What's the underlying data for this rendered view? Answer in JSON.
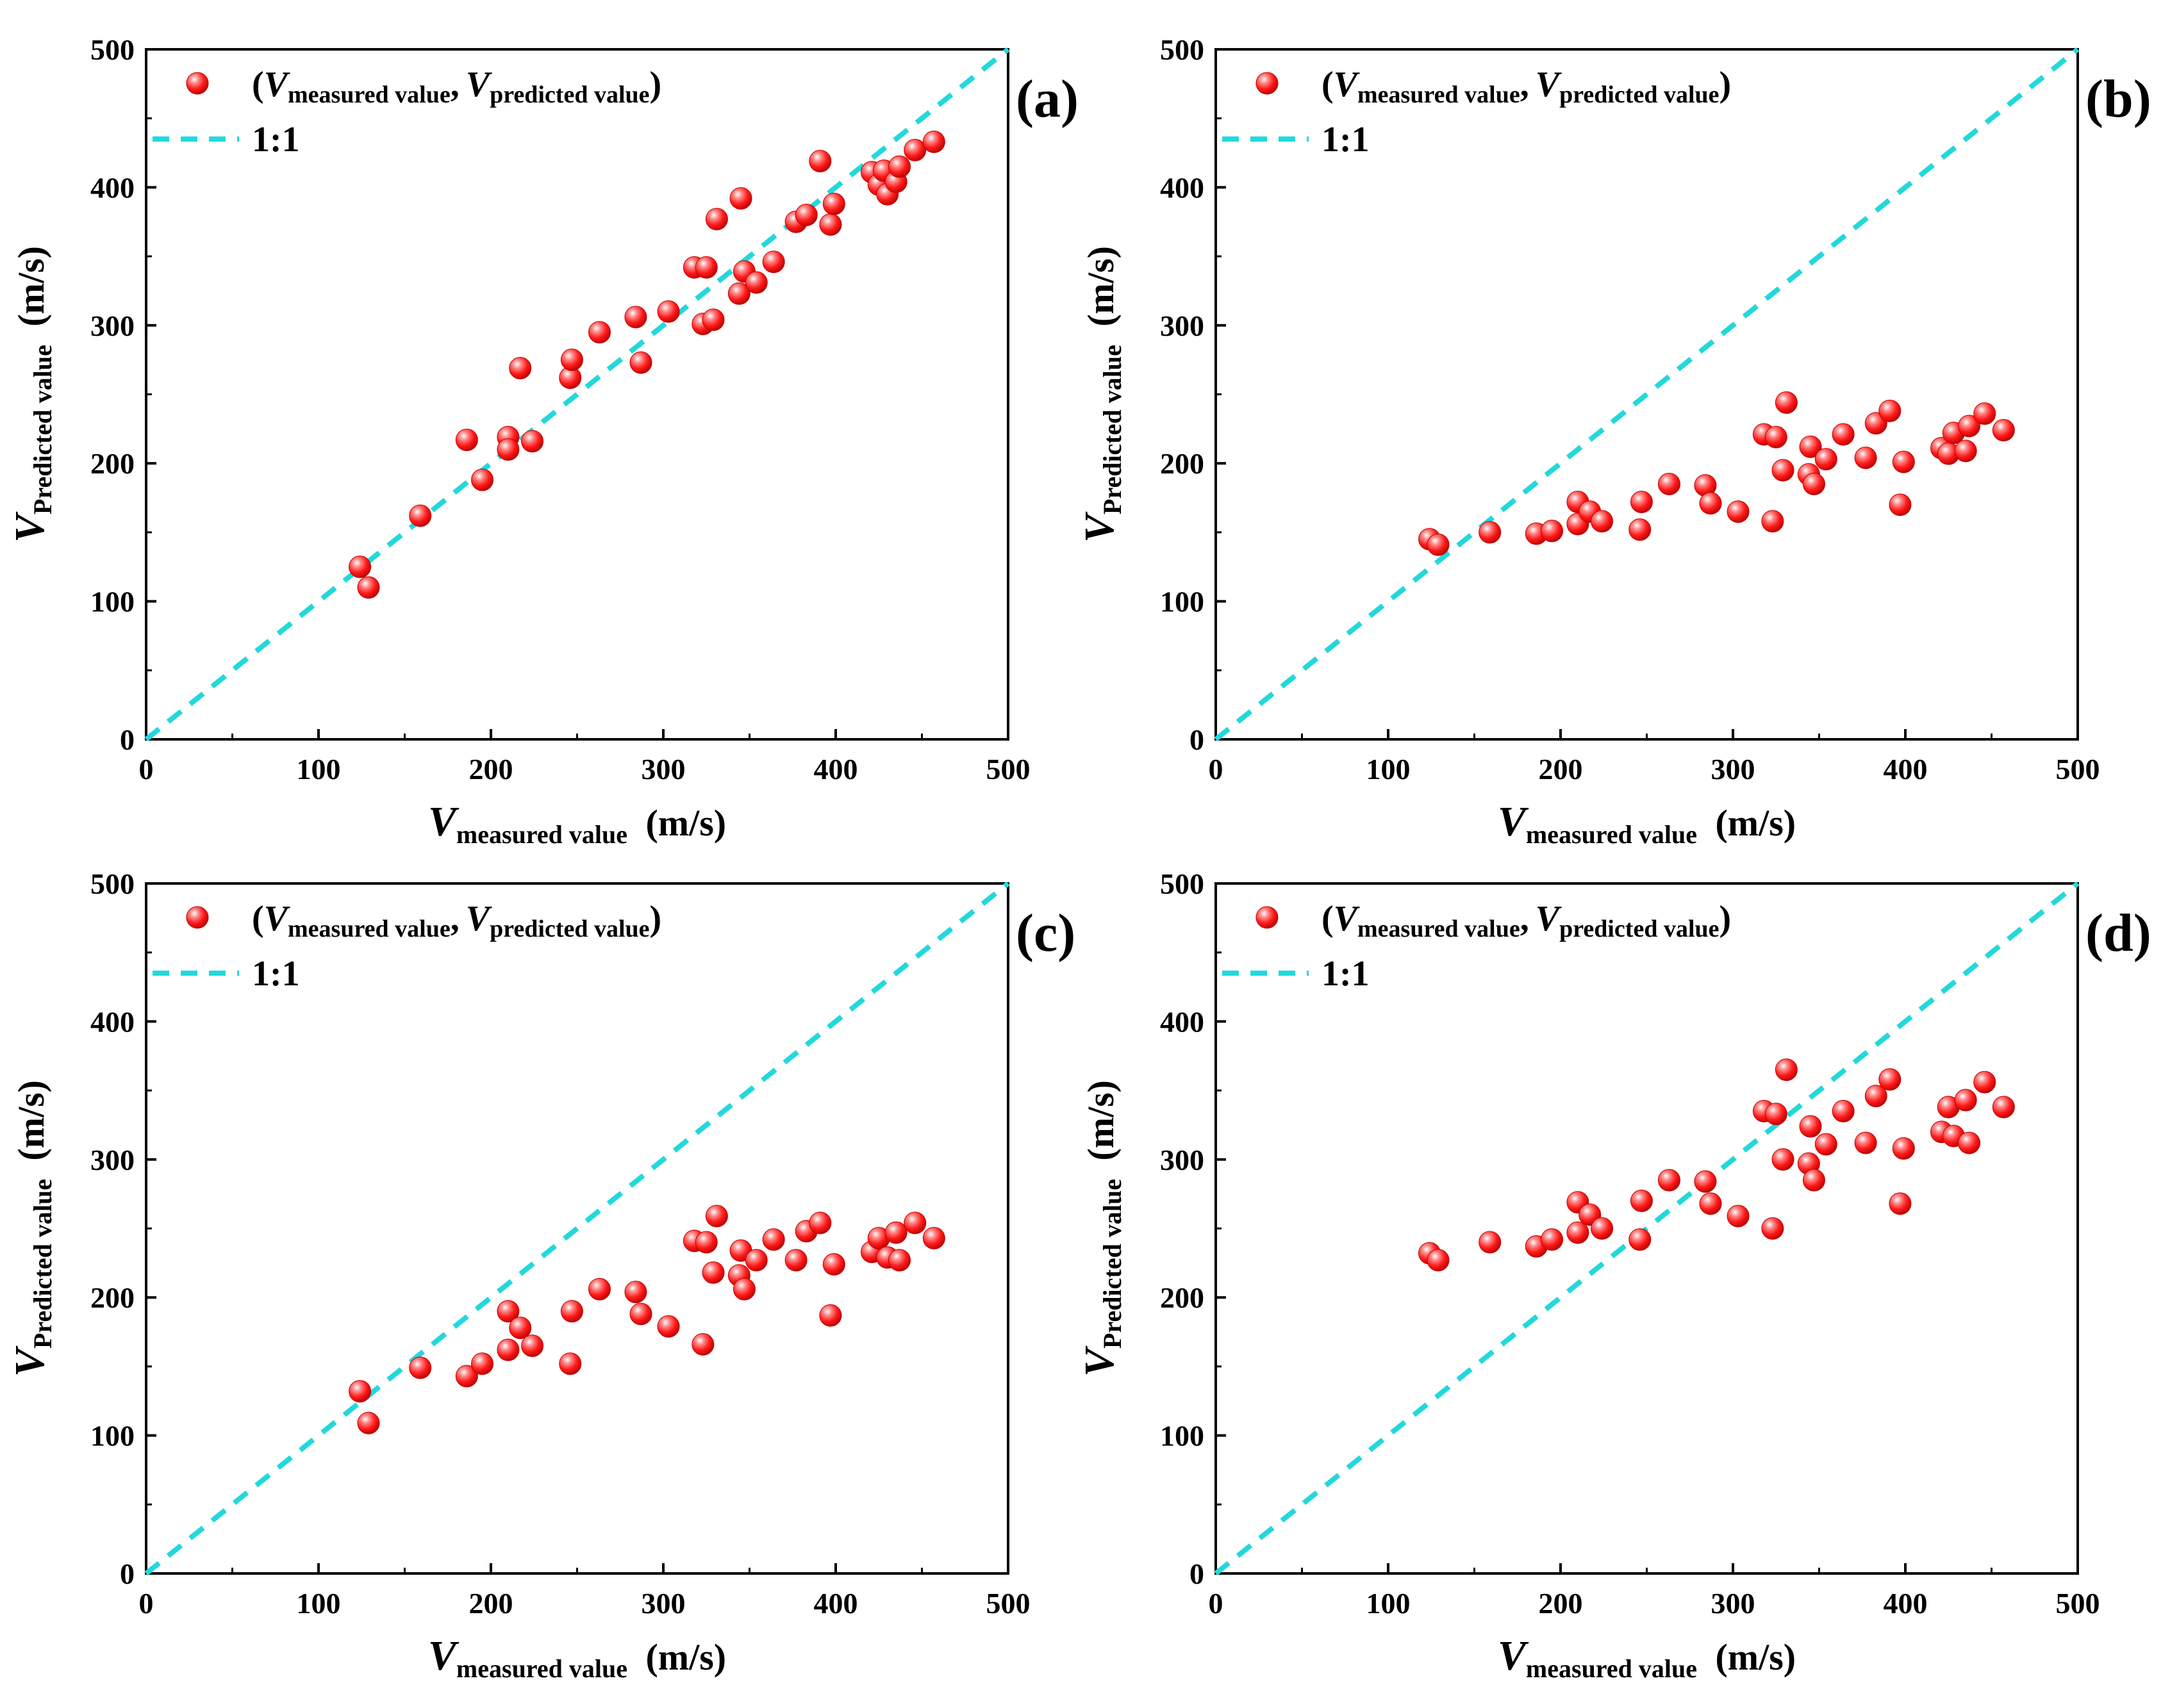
{
  "colors": {
    "points": "#ff1a1a",
    "identity_line": "#22d8dc",
    "axis": "#000000"
  },
  "legend_labels": {
    "paren_open": "(",
    "comma": ",",
    "paren_close": ")",
    "v_symbol": "V",
    "measured_sub": "measured value",
    "predicted_sub": "predicted value",
    "line_label": "1:1"
  },
  "axis_labels": {
    "x_symbol": "V",
    "x_sub": "measured value",
    "x_unit": "(m/s)",
    "y_symbol": "V",
    "y_sub": "Predicted value",
    "y_unit": "(m/s)"
  },
  "chart_data": [
    {
      "type": "scatter",
      "panel_label": "(a)",
      "xlim": [
        0,
        500
      ],
      "ylim": [
        0,
        500
      ],
      "xticks": [
        0,
        100,
        200,
        300,
        400,
        500
      ],
      "yticks": [
        0,
        100,
        200,
        300,
        400,
        500
      ],
      "identity_line": [
        [
          0,
          0
        ],
        [
          500,
          500
        ]
      ],
      "legend_position": "top-left",
      "series": [
        {
          "name": "(Vmeasured value, Vpredicted value)",
          "points": [
            [
              124,
              125
            ],
            [
              129,
              110
            ],
            [
              159,
              162
            ],
            [
              186,
              217
            ],
            [
              195,
              188
            ],
            [
              210,
              219
            ],
            [
              210,
              210
            ],
            [
              217,
              269
            ],
            [
              224,
              216
            ],
            [
              246,
              262
            ],
            [
              247,
              275
            ],
            [
              263,
              295
            ],
            [
              284,
              306
            ],
            [
              287,
              273
            ],
            [
              303,
              310
            ],
            [
              318,
              342
            ],
            [
              323,
              301
            ],
            [
              325,
              342
            ],
            [
              329,
              304
            ],
            [
              331,
              377
            ],
            [
              344,
              323
            ],
            [
              345,
              392
            ],
            [
              347,
              339
            ],
            [
              354,
              331
            ],
            [
              364,
              346
            ],
            [
              377,
              375
            ],
            [
              383,
              380
            ],
            [
              391,
              419
            ],
            [
              397,
              373
            ],
            [
              399,
              388
            ],
            [
              421,
              411
            ],
            [
              425,
              402
            ],
            [
              428,
              412
            ],
            [
              430,
              395
            ],
            [
              435,
              404
            ],
            [
              437,
              415
            ],
            [
              446,
              427
            ],
            [
              457,
              433
            ]
          ]
        }
      ]
    },
    {
      "type": "scatter",
      "panel_label": "(b)",
      "xlim": [
        0,
        500
      ],
      "ylim": [
        0,
        500
      ],
      "xticks": [
        0,
        100,
        200,
        300,
        400,
        500
      ],
      "yticks": [
        0,
        100,
        200,
        300,
        400,
        500
      ],
      "identity_line": [
        [
          0,
          0
        ],
        [
          500,
          500
        ]
      ],
      "legend_position": "top-left",
      "series": [
        {
          "name": "(Vmeasured value, Vpredicted value)",
          "points": [
            [
              124,
              145
            ],
            [
              129,
              141
            ],
            [
              159,
              150
            ],
            [
              186,
              149
            ],
            [
              195,
              151
            ],
            [
              210,
              172
            ],
            [
              210,
              156
            ],
            [
              217,
              165
            ],
            [
              224,
              158
            ],
            [
              246,
              152
            ],
            [
              247,
              172
            ],
            [
              263,
              185
            ],
            [
              284,
              184
            ],
            [
              287,
              171
            ],
            [
              303,
              165
            ],
            [
              318,
              221
            ],
            [
              323,
              158
            ],
            [
              325,
              219
            ],
            [
              329,
              195
            ],
            [
              331,
              244
            ],
            [
              344,
              192
            ],
            [
              345,
              212
            ],
            [
              347,
              185
            ],
            [
              354,
              203
            ],
            [
              364,
              221
            ],
            [
              377,
              204
            ],
            [
              383,
              229
            ],
            [
              391,
              238
            ],
            [
              397,
              170
            ],
            [
              399,
              201
            ],
            [
              421,
              211
            ],
            [
              425,
              207
            ],
            [
              428,
              222
            ],
            [
              435,
              209
            ],
            [
              437,
              227
            ],
            [
              446,
              236
            ],
            [
              457,
              224
            ]
          ]
        }
      ]
    },
    {
      "type": "scatter",
      "panel_label": "(c)",
      "xlim": [
        0,
        500
      ],
      "ylim": [
        0,
        500
      ],
      "xticks": [
        0,
        100,
        200,
        300,
        400,
        500
      ],
      "yticks": [
        0,
        100,
        200,
        300,
        400,
        500
      ],
      "identity_line": [
        [
          0,
          0
        ],
        [
          500,
          500
        ]
      ],
      "legend_position": "top-left",
      "series": [
        {
          "name": "(Vmeasured value, Vpredicted value)",
          "points": [
            [
              124,
              132
            ],
            [
              129,
              109
            ],
            [
              159,
              149
            ],
            [
              186,
              143
            ],
            [
              195,
              152
            ],
            [
              210,
              190
            ],
            [
              210,
              162
            ],
            [
              217,
              178
            ],
            [
              224,
              165
            ],
            [
              246,
              152
            ],
            [
              247,
              190
            ],
            [
              263,
              206
            ],
            [
              284,
              204
            ],
            [
              287,
              188
            ],
            [
              303,
              179
            ],
            [
              318,
              241
            ],
            [
              323,
              166
            ],
            [
              325,
              240
            ],
            [
              329,
              218
            ],
            [
              331,
              259
            ],
            [
              344,
              216
            ],
            [
              345,
              234
            ],
            [
              347,
              206
            ],
            [
              354,
              227
            ],
            [
              364,
              242
            ],
            [
              377,
              227
            ],
            [
              383,
              248
            ],
            [
              391,
              254
            ],
            [
              397,
              187
            ],
            [
              399,
              224
            ],
            [
              421,
              233
            ],
            [
              425,
              243
            ],
            [
              430,
              229
            ],
            [
              435,
              247
            ],
            [
              437,
              227
            ],
            [
              446,
              254
            ],
            [
              457,
              243
            ]
          ]
        }
      ]
    },
    {
      "type": "scatter",
      "panel_label": "(d)",
      "xlim": [
        0,
        500
      ],
      "ylim": [
        0,
        500
      ],
      "xticks": [
        0,
        100,
        200,
        300,
        400,
        500
      ],
      "yticks": [
        0,
        100,
        200,
        300,
        400,
        500
      ],
      "identity_line": [
        [
          0,
          0
        ],
        [
          500,
          500
        ]
      ],
      "legend_position": "top-left",
      "series": [
        {
          "name": "(Vmeasured value, Vpredicted value)",
          "points": [
            [
              124,
              232
            ],
            [
              129,
              227
            ],
            [
              159,
              240
            ],
            [
              186,
              237
            ],
            [
              195,
              242
            ],
            [
              210,
              269
            ],
            [
              210,
              247
            ],
            [
              217,
              260
            ],
            [
              224,
              250
            ],
            [
              246,
              242
            ],
            [
              247,
              270
            ],
            [
              263,
              285
            ],
            [
              284,
              284
            ],
            [
              287,
              268
            ],
            [
              303,
              259
            ],
            [
              318,
              335
            ],
            [
              323,
              250
            ],
            [
              325,
              333
            ],
            [
              329,
              300
            ],
            [
              331,
              365
            ],
            [
              344,
              297
            ],
            [
              345,
              324
            ],
            [
              347,
              285
            ],
            [
              354,
              311
            ],
            [
              364,
              335
            ],
            [
              377,
              312
            ],
            [
              383,
              346
            ],
            [
              391,
              358
            ],
            [
              397,
              268
            ],
            [
              399,
              308
            ],
            [
              421,
              320
            ],
            [
              425,
              338
            ],
            [
              428,
              317
            ],
            [
              435,
              343
            ],
            [
              437,
              312
            ],
            [
              446,
              356
            ],
            [
              457,
              338
            ]
          ]
        }
      ]
    }
  ]
}
